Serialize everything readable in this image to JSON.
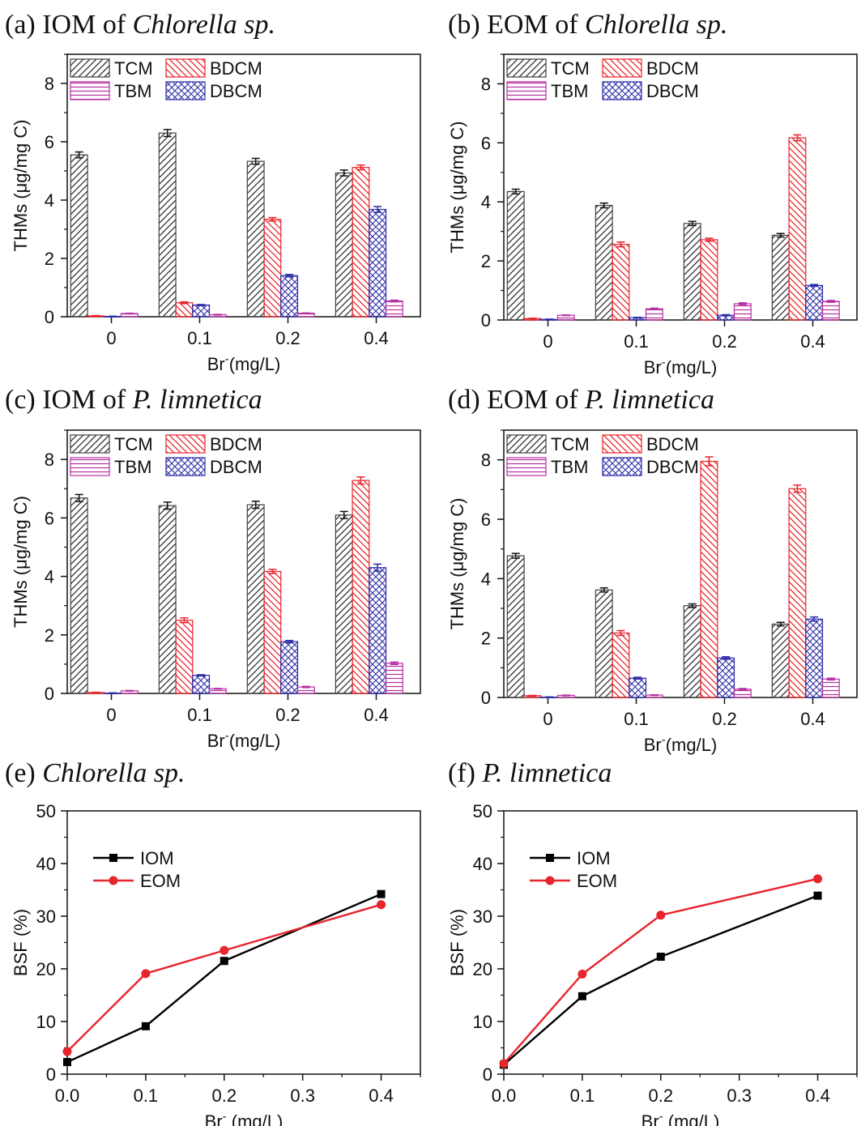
{
  "colors": {
    "TCM": "#404040",
    "BDCM": "#e8242c",
    "TBM": "#b72fa2",
    "DBCM": "#2c2ca8",
    "IOM": "#000000",
    "EOM": "#e8242c"
  },
  "chart_data": [
    {
      "id": "a",
      "type": "bar",
      "title_prefix": "(a) IOM of ",
      "title_italic": "Chlorella sp.",
      "categories": [
        "0",
        "0.1",
        "0.2",
        "0.4"
      ],
      "xlabel": "Br",
      "xlabel_sup": "-",
      "xlabel_unit": "(mg/L)",
      "ylabel": "THMs (μg/mg C)",
      "ylim": [
        0,
        9
      ],
      "yticks": [
        0,
        2,
        4,
        6,
        8
      ],
      "legend": [
        [
          "TCM",
          "BDCM"
        ],
        [
          "TBM",
          "DBCM"
        ]
      ],
      "series": [
        {
          "name": "TCM",
          "values": [
            5.55,
            6.3,
            5.33,
            4.93
          ],
          "errors": [
            0.1,
            0.12,
            0.1,
            0.1
          ]
        },
        {
          "name": "BDCM",
          "values": [
            0.03,
            0.48,
            3.34,
            5.12
          ],
          "errors": [
            0.01,
            0.03,
            0.06,
            0.08
          ]
        },
        {
          "name": "DBCM",
          "values": [
            0.01,
            0.4,
            1.41,
            3.68
          ],
          "errors": [
            0.01,
            0.02,
            0.04,
            0.1
          ]
        },
        {
          "name": "TBM",
          "values": [
            0.11,
            0.07,
            0.12,
            0.54
          ],
          "errors": [
            0.01,
            0.01,
            0.01,
            0.03
          ]
        }
      ]
    },
    {
      "id": "b",
      "type": "bar",
      "title_prefix": "(b) EOM of ",
      "title_italic": "Chlorella sp.",
      "categories": [
        "0",
        "0.1",
        "0.2",
        "0.4"
      ],
      "xlabel": "Br",
      "xlabel_sup": "-",
      "xlabel_unit": "(mg/L)",
      "ylabel": "THMs (μg/mg C)",
      "ylim": [
        0,
        9
      ],
      "yticks": [
        0,
        2,
        4,
        6,
        8
      ],
      "legend": [
        [
          "TCM",
          "BDCM"
        ],
        [
          "TBM",
          "DBCM"
        ]
      ],
      "series": [
        {
          "name": "TCM",
          "values": [
            4.35,
            3.88,
            3.27,
            2.87
          ],
          "errors": [
            0.08,
            0.08,
            0.07,
            0.06
          ]
        },
        {
          "name": "BDCM",
          "values": [
            0.05,
            2.56,
            2.72,
            6.17
          ],
          "errors": [
            0.01,
            0.08,
            0.05,
            0.1
          ]
        },
        {
          "name": "DBCM",
          "values": [
            0.02,
            0.08,
            0.16,
            1.17
          ],
          "errors": [
            0.01,
            0.01,
            0.02,
            0.03
          ]
        },
        {
          "name": "TBM",
          "values": [
            0.16,
            0.38,
            0.55,
            0.63
          ],
          "errors": [
            0.01,
            0.02,
            0.03,
            0.03
          ]
        }
      ]
    },
    {
      "id": "c",
      "type": "bar",
      "title_prefix": "(c) IOM of ",
      "title_italic": "P. limnetica",
      "categories": [
        "0",
        "0.1",
        "0.2",
        "0.4"
      ],
      "xlabel": "Br",
      "xlabel_sup": "-",
      "xlabel_unit": "(mg/L)",
      "ylabel": "THMs (μg/mg C)",
      "ylim": [
        0,
        9
      ],
      "yticks": [
        0,
        2,
        4,
        6,
        8
      ],
      "legend": [
        [
          "TCM",
          "BDCM"
        ],
        [
          "TBM",
          "DBCM"
        ]
      ],
      "series": [
        {
          "name": "TCM",
          "values": [
            6.68,
            6.42,
            6.45,
            6.1
          ],
          "errors": [
            0.12,
            0.12,
            0.12,
            0.12
          ]
        },
        {
          "name": "BDCM",
          "values": [
            0.03,
            2.5,
            4.17,
            7.28
          ],
          "errors": [
            0.01,
            0.08,
            0.07,
            0.12
          ]
        },
        {
          "name": "DBCM",
          "values": [
            0.01,
            0.62,
            1.77,
            4.3
          ],
          "errors": [
            0.01,
            0.02,
            0.04,
            0.12
          ]
        },
        {
          "name": "TBM",
          "values": [
            0.09,
            0.16,
            0.22,
            1.03
          ],
          "errors": [
            0.01,
            0.01,
            0.02,
            0.04
          ]
        }
      ]
    },
    {
      "id": "d",
      "type": "bar",
      "title_prefix": "(d) EOM of ",
      "title_italic": "P. limnetica",
      "categories": [
        "0",
        "0.1",
        "0.2",
        "0.4"
      ],
      "xlabel": "Br",
      "xlabel_sup": "-",
      "xlabel_unit": "(mg/L)",
      "ylabel": "THMs (μg/mg C)",
      "ylim": [
        0,
        9
      ],
      "yticks": [
        0,
        2,
        4,
        6,
        8
      ],
      "legend": [
        [
          "TCM",
          "BDCM"
        ],
        [
          "TBM",
          "DBCM"
        ]
      ],
      "series": [
        {
          "name": "TCM",
          "values": [
            4.77,
            3.62,
            3.09,
            2.47
          ],
          "errors": [
            0.08,
            0.07,
            0.06,
            0.06
          ]
        },
        {
          "name": "BDCM",
          "values": [
            0.06,
            2.17,
            7.95,
            7.03
          ],
          "errors": [
            0.01,
            0.08,
            0.15,
            0.12
          ]
        },
        {
          "name": "DBCM",
          "values": [
            0.01,
            0.65,
            1.33,
            2.64
          ],
          "errors": [
            0.01,
            0.03,
            0.04,
            0.07
          ]
        },
        {
          "name": "TBM",
          "values": [
            0.07,
            0.08,
            0.28,
            0.62
          ],
          "errors": [
            0.01,
            0.01,
            0.02,
            0.03
          ]
        }
      ]
    },
    {
      "id": "e",
      "type": "line",
      "title_prefix": "(e) ",
      "title_italic": "Chlorella sp.",
      "x": [
        0.0,
        0.1,
        0.2,
        0.4
      ],
      "xticks": [
        "0.0",
        "0.1",
        "0.2",
        "0.3",
        "0.4"
      ],
      "xlabel": "Br",
      "xlabel_sup": "-",
      "xlabel_unit": " (mg/L)",
      "ylabel": "BSF (%)",
      "ylim": [
        0,
        50
      ],
      "xlim": [
        0,
        0.45
      ],
      "yticks": [
        0,
        10,
        20,
        30,
        40,
        50
      ],
      "series": [
        {
          "name": "IOM",
          "values": [
            2.3,
            9.1,
            21.5,
            34.2
          ]
        },
        {
          "name": "EOM",
          "values": [
            4.3,
            19.1,
            23.5,
            32.2
          ]
        }
      ]
    },
    {
      "id": "f",
      "type": "line",
      "title_prefix": "(f) ",
      "title_italic": "P. limnetica",
      "x": [
        0.0,
        0.1,
        0.2,
        0.4
      ],
      "xticks": [
        "0.0",
        "0.1",
        "0.2",
        "0.3",
        "0.4"
      ],
      "xlabel": "Br",
      "xlabel_sup": "-",
      "xlabel_unit": " (mg/L)",
      "ylabel": "BSF (%)",
      "ylim": [
        0,
        50
      ],
      "xlim": [
        0,
        0.45
      ],
      "yticks": [
        0,
        10,
        20,
        30,
        40,
        50
      ],
      "series": [
        {
          "name": "IOM",
          "values": [
            1.8,
            14.8,
            22.3,
            33.9
          ]
        },
        {
          "name": "EOM",
          "values": [
            2.0,
            19.0,
            30.2,
            37.1
          ]
        }
      ]
    }
  ]
}
